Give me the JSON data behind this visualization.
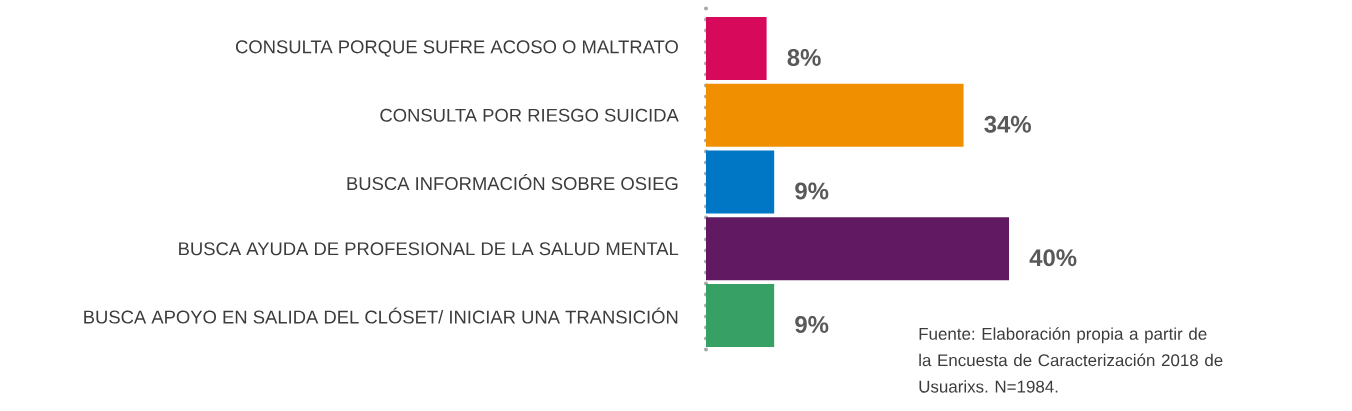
{
  "chart_data": {
    "type": "bar",
    "orientation": "horizontal",
    "categories": [
      "CONSULTA PORQUE SUFRE ACOSO O MALTRATO",
      "CONSULTA POR RIESGO SUICIDA",
      "BUSCA INFORMACIÓN SOBRE OSIEG",
      "BUSCA AYUDA DE PROFESIONAL DE LA SALUD MENTAL",
      "BUSCA APOYO EN SALIDA DEL CLÓSET/ INICIAR UNA TRANSICIÓN"
    ],
    "values": [
      8,
      34,
      9,
      40,
      9
    ],
    "colors": [
      "#d6095a",
      "#f08f00",
      "#0077c5",
      "#611a61",
      "#37a064"
    ],
    "value_labels": [
      "8%",
      "34%",
      "9%",
      "40%",
      "9%"
    ],
    "annotations": [
      "Fuente: Elaboración propia a partir de la Encuesta de Caracterización 2018 de Usuarixs. N=1984."
    ]
  }
}
